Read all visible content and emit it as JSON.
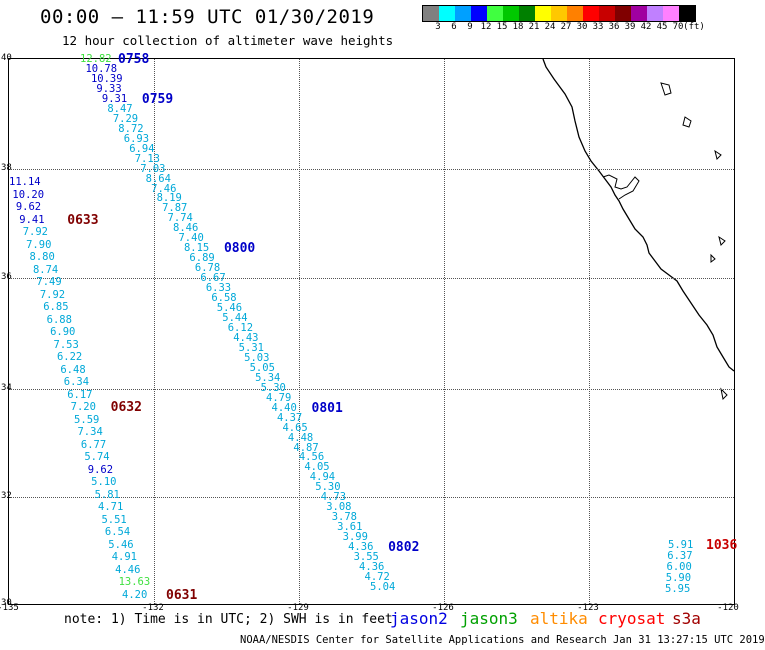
{
  "header": {
    "title": "00:00 – 11:59 UTC 01/30/2019",
    "subtitle": "12 hour collection of altimeter wave heights"
  },
  "colorbar": {
    "labels": [
      "3",
      "6",
      "9",
      "12",
      "15",
      "18",
      "21",
      "24",
      "27",
      "30",
      "33",
      "36",
      "39",
      "42",
      "45",
      "70",
      "(ft)"
    ],
    "colors": [
      "#808080",
      "#00ffff",
      "#00a0ff",
      "#0000ff",
      "#40ff40",
      "#00c800",
      "#008000",
      "#ffff00",
      "#ffc800",
      "#ff8000",
      "#ff0000",
      "#c80000",
      "#800000",
      "#a000a0",
      "#c080ff",
      "#ff80ff",
      "#000000"
    ]
  },
  "map": {
    "lat_labels": [
      "40",
      "38",
      "36",
      "34",
      "32",
      "30"
    ],
    "lon_labels": [
      "-135",
      "-132",
      "-129",
      "-126",
      "-123",
      "-120"
    ],
    "colors": {
      "cyan": "#00a8d8",
      "blue": "#0000c8",
      "green": "#40e040",
      "dark_red": "#800000"
    },
    "tracks": [
      {
        "name": "track-0758-0802",
        "times": [
          {
            "text": "0758",
            "color": "#0000c8"
          },
          {
            "text": "0759",
            "color": "#0000c8"
          },
          {
            "text": "0800",
            "color": "#0000c8"
          },
          {
            "text": "0801",
            "color": "#0000c8"
          },
          {
            "text": "0802",
            "color": "#0000c8"
          }
        ],
        "values": [
          {
            "v": "12.82",
            "c": "green"
          },
          {
            "v": "10.78",
            "c": "blue"
          },
          {
            "v": "10.39",
            "c": "blue"
          },
          {
            "v": "9.33",
            "c": "blue"
          },
          {
            "v": "9.31",
            "c": "blue"
          },
          {
            "v": "8.47",
            "c": "cyan"
          },
          {
            "v": "7.29",
            "c": "cyan"
          },
          {
            "v": "8.72",
            "c": "cyan"
          },
          {
            "v": "6.93",
            "c": "cyan"
          },
          {
            "v": "6.94",
            "c": "cyan"
          },
          {
            "v": "7.13",
            "c": "cyan"
          },
          {
            "v": "7.03",
            "c": "cyan"
          },
          {
            "v": "8.64",
            "c": "cyan"
          },
          {
            "v": "7.46",
            "c": "cyan"
          },
          {
            "v": "8.19",
            "c": "cyan"
          },
          {
            "v": "7.87",
            "c": "cyan"
          },
          {
            "v": "7.74",
            "c": "cyan"
          },
          {
            "v": "8.46",
            "c": "cyan"
          },
          {
            "v": "7.40",
            "c": "cyan"
          },
          {
            "v": "8.15",
            "c": "cyan"
          },
          {
            "v": "6.89",
            "c": "cyan"
          },
          {
            "v": "6.78",
            "c": "cyan"
          },
          {
            "v": "6.67",
            "c": "cyan"
          },
          {
            "v": "6.33",
            "c": "cyan"
          },
          {
            "v": "6.58",
            "c": "cyan"
          },
          {
            "v": "5.46",
            "c": "cyan"
          },
          {
            "v": "5.44",
            "c": "cyan"
          },
          {
            "v": "6.12",
            "c": "cyan"
          },
          {
            "v": "4.43",
            "c": "cyan"
          },
          {
            "v": "5.31",
            "c": "cyan"
          },
          {
            "v": "5.03",
            "c": "cyan"
          },
          {
            "v": "5.05",
            "c": "cyan"
          },
          {
            "v": "5.34",
            "c": "cyan"
          },
          {
            "v": "5.30",
            "c": "cyan"
          },
          {
            "v": "4.79",
            "c": "cyan"
          },
          {
            "v": "4.40",
            "c": "cyan"
          },
          {
            "v": "4.37",
            "c": "cyan"
          },
          {
            "v": "4.65",
            "c": "cyan"
          },
          {
            "v": "4.48",
            "c": "cyan"
          },
          {
            "v": "4.87",
            "c": "cyan"
          },
          {
            "v": "4.56",
            "c": "cyan"
          },
          {
            "v": "4.05",
            "c": "cyan"
          },
          {
            "v": "4.94",
            "c": "cyan"
          },
          {
            "v": "5.30",
            "c": "cyan"
          },
          {
            "v": "4.73",
            "c": "cyan"
          },
          {
            "v": "3.08",
            "c": "cyan"
          },
          {
            "v": "3.78",
            "c": "cyan"
          },
          {
            "v": "3.61",
            "c": "cyan"
          },
          {
            "v": "3.99",
            "c": "cyan"
          },
          {
            "v": "4.36",
            "c": "cyan"
          },
          {
            "v": "3.55",
            "c": "cyan"
          },
          {
            "v": "4.36",
            "c": "cyan"
          },
          {
            "v": "4.72",
            "c": "cyan"
          },
          {
            "v": "5.04",
            "c": "cyan"
          }
        ]
      },
      {
        "name": "track-0631-0633",
        "times": [
          {
            "text": "0633",
            "color": "#800000"
          },
          {
            "text": "0632",
            "color": "#800000"
          },
          {
            "text": "0631",
            "color": "#800000"
          }
        ],
        "values": [
          {
            "v": "11.14",
            "c": "blue"
          },
          {
            "v": "10.20",
            "c": "blue"
          },
          {
            "v": "9.62",
            "c": "blue"
          },
          {
            "v": "9.41",
            "c": "blue"
          },
          {
            "v": "7.92",
            "c": "cyan"
          },
          {
            "v": "7.90",
            "c": "cyan"
          },
          {
            "v": "8.80",
            "c": "cyan"
          },
          {
            "v": "8.74",
            "c": "cyan"
          },
          {
            "v": "7.49",
            "c": "cyan"
          },
          {
            "v": "7.92",
            "c": "cyan"
          },
          {
            "v": "6.85",
            "c": "cyan"
          },
          {
            "v": "6.88",
            "c": "cyan"
          },
          {
            "v": "6.90",
            "c": "cyan"
          },
          {
            "v": "7.53",
            "c": "cyan"
          },
          {
            "v": "6.22",
            "c": "cyan"
          },
          {
            "v": "6.48",
            "c": "cyan"
          },
          {
            "v": "6.34",
            "c": "cyan"
          },
          {
            "v": "6.17",
            "c": "cyan"
          },
          {
            "v": "7.20",
            "c": "cyan"
          },
          {
            "v": "5.59",
            "c": "cyan"
          },
          {
            "v": "7.34",
            "c": "cyan"
          },
          {
            "v": "6.77",
            "c": "cyan"
          },
          {
            "v": "5.74",
            "c": "cyan"
          },
          {
            "v": "9.62",
            "c": "blue"
          },
          {
            "v": "5.10",
            "c": "cyan"
          },
          {
            "v": "5.81",
            "c": "cyan"
          },
          {
            "v": "4.71",
            "c": "cyan"
          },
          {
            "v": "5.51",
            "c": "cyan"
          },
          {
            "v": "6.54",
            "c": "cyan"
          },
          {
            "v": "5.46",
            "c": "cyan"
          },
          {
            "v": "4.91",
            "c": "cyan"
          },
          {
            "v": "4.46",
            "c": "cyan"
          },
          {
            "v": "13.63",
            "c": "green"
          },
          {
            "v": "4.20",
            "c": "cyan"
          }
        ]
      },
      {
        "name": "track-1036",
        "times": [
          {
            "text": "1036",
            "color": "#c80000"
          }
        ],
        "values": [
          {
            "v": "5.91",
            "c": "cyan"
          },
          {
            "v": "6.37",
            "c": "cyan"
          },
          {
            "v": "6.00",
            "c": "cyan"
          },
          {
            "v": "5.90",
            "c": "cyan"
          },
          {
            "v": "5.95",
            "c": "cyan"
          }
        ]
      }
    ]
  },
  "footer": {
    "note": "note: 1) Time is in UTC; 2) SWH is in feet",
    "legend": [
      {
        "label": "jason2",
        "color": "#0000e0"
      },
      {
        "label": "jason3",
        "color": "#00a000"
      },
      {
        "label": "altika",
        "color": "#ff8c00"
      },
      {
        "label": "cryosat",
        "color": "#ff0000"
      },
      {
        "label": "s3a",
        "color": "#a00000"
      }
    ],
    "credit": "NOAA/NESDIS Center for Satellite Applications and Research    Jan 31 13:27:15 UTC 2019"
  }
}
